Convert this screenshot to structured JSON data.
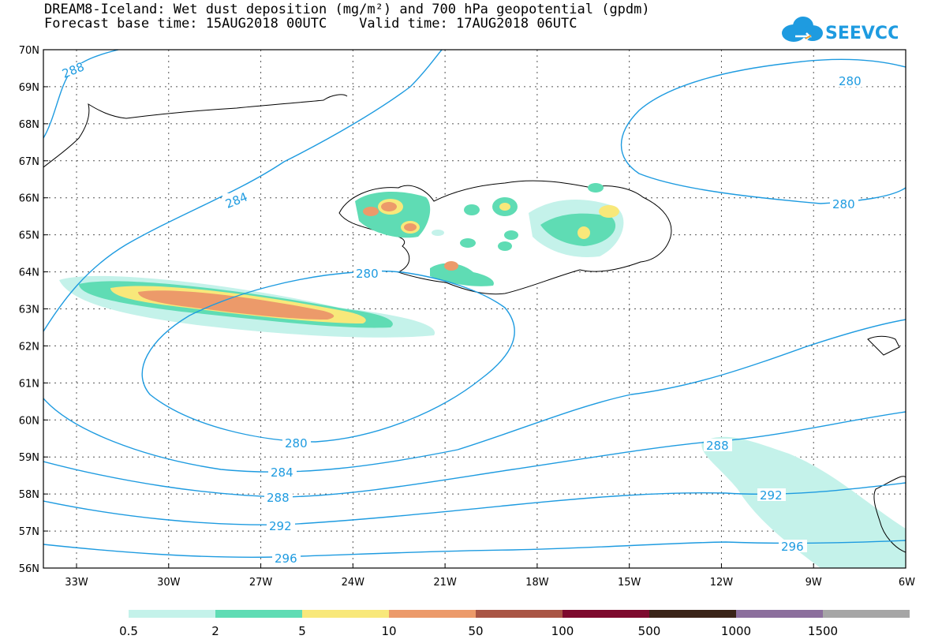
{
  "header": {
    "title_line1": "DREAM8-Iceland: Wet dust deposition (mg/m²) and 700 hPa geopotential (gpdm)",
    "title_line2": "Forecast base time: 15AUG2018 00UTC    Valid time: 17AUG2018 06UTC"
  },
  "logo": {
    "text": "SEEVCCC",
    "icon": "cloud-logo-icon",
    "color": "#1e9be0"
  },
  "map": {
    "lat_labels": [
      "70N",
      "69N",
      "68N",
      "67N",
      "66N",
      "65N",
      "64N",
      "63N",
      "62N",
      "61N",
      "60N",
      "59N",
      "58N",
      "57N",
      "56N"
    ],
    "lon_labels": [
      "33W",
      "30W",
      "27W",
      "24W",
      "21W",
      "18W",
      "15W",
      "12W",
      "9W",
      "6W"
    ],
    "contour_color": "#1e9be0",
    "contour_labels": [
      "288",
      "284",
      "280",
      "280",
      "280",
      "280",
      "284",
      "288",
      "292",
      "296",
      "288",
      "292",
      "296"
    ]
  },
  "colorbar": {
    "colors": [
      "#c4f2ea",
      "#5fdcb4",
      "#f8e87a",
      "#ec9a6a",
      "#a95545",
      "#7d0a2e",
      "#3a2418",
      "#8c6f9d",
      "#a6a6a6"
    ],
    "labels": [
      "0.5",
      "2",
      "5",
      "10",
      "50",
      "100",
      "500",
      "1000",
      "1500"
    ]
  }
}
